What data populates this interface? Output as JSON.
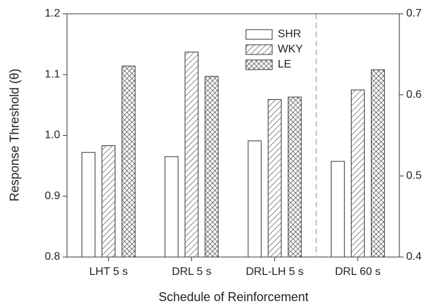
{
  "chart_data": [
    {
      "type": "bar",
      "x_label": "Schedule of Reinforcement",
      "y_label": "Response Threshold (θ)",
      "categories": [
        "LHT 5 s",
        "DRL 5 s",
        "DRL-LH 5 s"
      ],
      "series": [
        {
          "name": "SHR",
          "pattern": "none",
          "values": [
            0.972,
            0.965,
            0.991
          ]
        },
        {
          "name": "WKY",
          "pattern": "diagonal",
          "values": [
            0.983,
            1.137,
            1.059
          ]
        },
        {
          "name": "LE",
          "pattern": "crosshatch",
          "values": [
            1.114,
            1.097,
            1.063
          ]
        }
      ],
      "ylim": [
        0.8,
        1.2
      ],
      "yticks": [
        0.8,
        0.9,
        {
          "value": 1.0,
          "label": "1.0"
        },
        1.1,
        1.2
      ],
      "legend": "top-center"
    },
    {
      "type": "bar",
      "categories": [
        "DRL 60 s"
      ],
      "series": [
        {
          "pattern": "none",
          "axis": "y2",
          "values": [
            0.518
          ]
        },
        {
          "pattern": "diagonal",
          "axis": "y2",
          "values": [
            0.606
          ]
        },
        {
          "pattern": "crosshatch",
          "axis": "y2",
          "values": [
            0.631
          ]
        }
      ],
      "y2lim": [
        0.4,
        0.7
      ],
      "y2ticks": [
        0.4,
        0.5,
        0.6,
        0.7
      ]
    }
  ]
}
